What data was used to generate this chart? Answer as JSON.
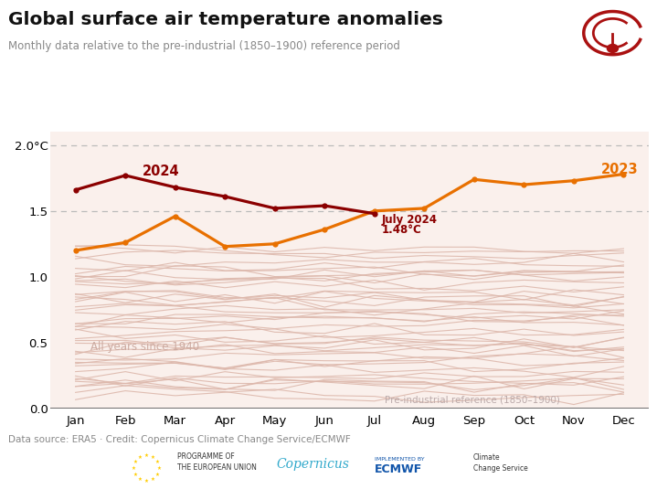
{
  "title": "Global surface air temperature anomalies",
  "subtitle": "Monthly data relative to the pre-industrial (1850–1900) reference period",
  "source_text": "Data source: ERA5 · Credit: Copernicus Climate Change Service/ECMWF",
  "months": [
    "Jan",
    "Feb",
    "Mar",
    "Apr",
    "May",
    "Jun",
    "Jul",
    "Aug",
    "Sep",
    "Oct",
    "Nov",
    "Dec"
  ],
  "data_2024": [
    1.66,
    1.77,
    1.68,
    1.61,
    1.52,
    1.54,
    1.48,
    null,
    null,
    null,
    null,
    null
  ],
  "data_2023": [
    1.2,
    1.26,
    1.46,
    1.23,
    1.25,
    1.36,
    1.5,
    1.52,
    1.74,
    1.7,
    1.73,
    1.78
  ],
  "color_2024": "#8B0000",
  "color_2023": "#E87000",
  "ylim": [
    0.0,
    2.1
  ],
  "yticks": [
    0.0,
    0.5,
    1.0,
    1.5,
    2.0
  ],
  "ytick_labels": [
    "0.0",
    "0.5",
    "1.0",
    "1.5",
    "2.0°C"
  ],
  "annotation_2024_label": "2024",
  "annotation_2023_label": "2023",
  "background_color": "#FFFFFF",
  "plot_bg_color": "#FAF0EC",
  "spaghetti_color": "#DDB8AC",
  "years_since_1940_label": "All years since 1940",
  "preindustrial_label": "Pre-industrial reference (1850–1900)",
  "logo_circle_color": "#AA1111",
  "spaghetti_seeds": [
    42,
    17,
    99,
    5,
    23,
    71,
    88,
    13,
    55,
    66,
    31,
    82,
    47,
    9,
    61,
    28,
    74,
    3,
    50,
    90,
    15,
    38,
    63,
    7,
    44,
    79,
    22,
    56,
    85,
    11,
    34,
    68,
    19,
    41,
    76,
    2,
    58,
    93,
    26,
    49,
    84,
    16,
    37,
    72,
    8
  ],
  "spaghetti_base_values": [
    0.1,
    0.15,
    0.2,
    0.25,
    0.3,
    0.35,
    0.4,
    0.45,
    0.5,
    0.55,
    0.6,
    0.65,
    0.7,
    0.75,
    0.8,
    0.85,
    0.9,
    0.95,
    1.0,
    1.05,
    1.1,
    1.15,
    1.2,
    0.12,
    0.22,
    0.32,
    0.42,
    0.52,
    0.62,
    0.72,
    0.82,
    0.92,
    1.02,
    1.12,
    0.17,
    0.27,
    0.37,
    0.47,
    0.57,
    0.67,
    0.77,
    0.87,
    0.97,
    1.07,
    1.17
  ]
}
